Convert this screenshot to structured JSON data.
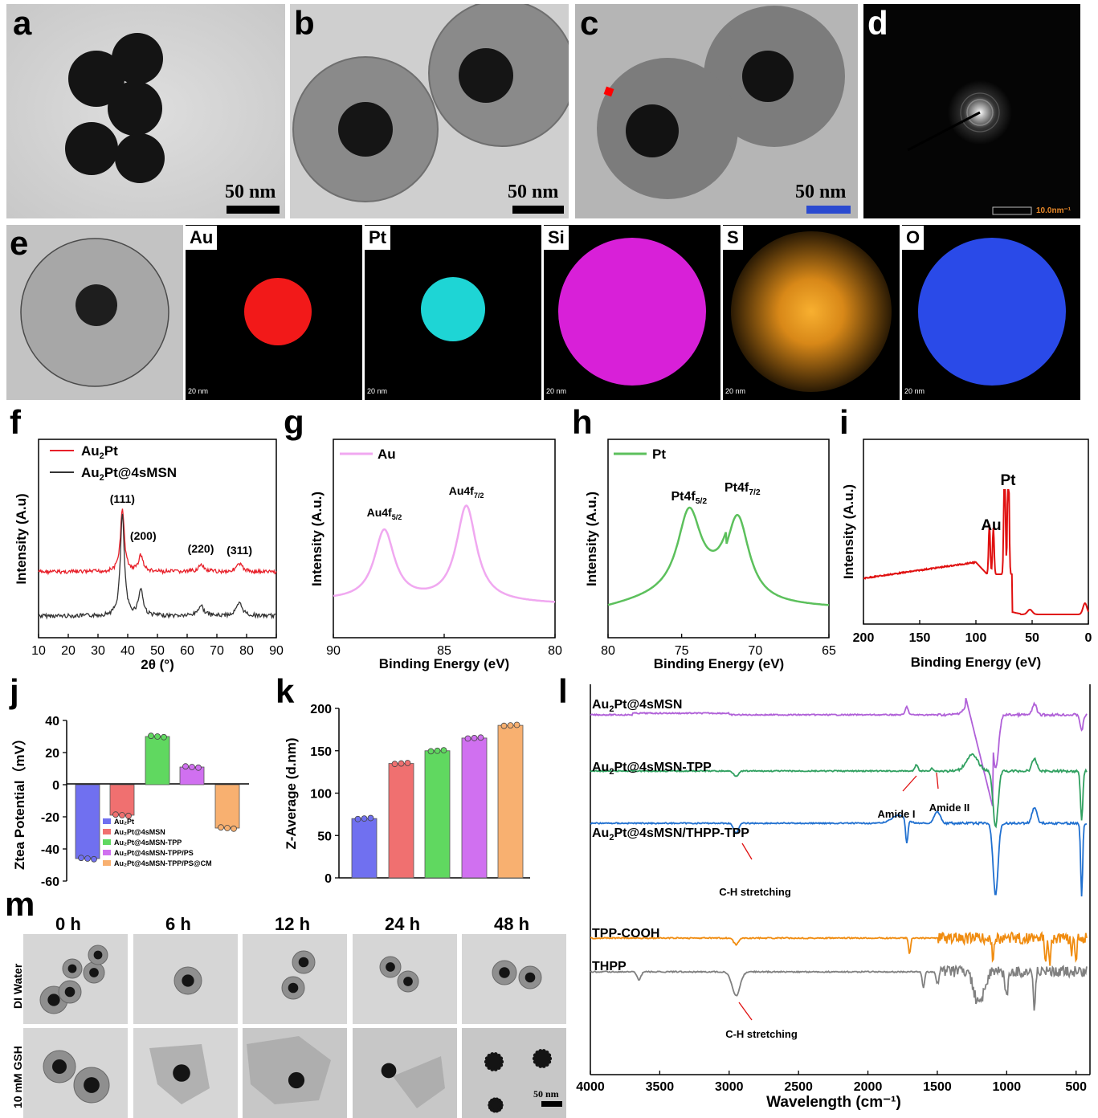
{
  "panels": {
    "a": {
      "letter": "a",
      "scale": "50 nm"
    },
    "b": {
      "letter": "b",
      "scale": "50 nm"
    },
    "c": {
      "letter": "c",
      "scale": "50 nm"
    },
    "d": {
      "letter": "d",
      "scale": "10.0nm⁻¹"
    },
    "e": {
      "letter": "e",
      "maps": [
        {
          "label": "Au",
          "scale": "20 nm",
          "color": "#ff1a1a"
        },
        {
          "label": "Pt",
          "scale": "20 nm",
          "color": "#20e0e0"
        },
        {
          "label": "Si",
          "scale": "20 nm",
          "color": "#e020e0"
        },
        {
          "label": "S",
          "scale": "20 nm",
          "color": "#f0a020"
        },
        {
          "label": "O",
          "scale": "20 nm",
          "color": "#2a4ae8"
        }
      ]
    },
    "f": {
      "letter": "f"
    },
    "g": {
      "letter": "g"
    },
    "h": {
      "letter": "h"
    },
    "i": {
      "letter": "i"
    },
    "j": {
      "letter": "j"
    },
    "k": {
      "letter": "k"
    },
    "l": {
      "letter": "l"
    },
    "m": {
      "letter": "m",
      "times": [
        "0 h",
        "6 h",
        "12 h",
        "24 h",
        "48 h"
      ],
      "rows": [
        "DI Water",
        "10 mM GSH"
      ],
      "scale": "50 nm"
    }
  },
  "chart_data": [
    {
      "panel": "f",
      "type": "line",
      "xlabel": "2θ (°)",
      "ylabel": "Intensity (A.u)",
      "xlim": [
        10,
        90
      ],
      "xticks": [
        10,
        20,
        30,
        40,
        50,
        60,
        70,
        80,
        90
      ],
      "series": [
        {
          "name": "Au₂Pt",
          "color": "#e8202a"
        },
        {
          "name": "Au₂Pt@4sMSN",
          "color": "#333333"
        }
      ],
      "peaks": [
        {
          "x": 38.2,
          "label": "(111)"
        },
        {
          "x": 44.4,
          "label": "(200)"
        },
        {
          "x": 64.6,
          "label": "(220)"
        },
        {
          "x": 77.6,
          "label": "(311)"
        }
      ]
    },
    {
      "panel": "g",
      "type": "line",
      "xlabel": "Binding Energy (eV)",
      "ylabel": "Intensity (A.u.)",
      "xlim": [
        90,
        80
      ],
      "xticks": [
        90,
        85,
        80
      ],
      "series": [
        {
          "name": "Au",
          "color": "#f0a8f0"
        }
      ],
      "peaks": [
        {
          "x": 87.7,
          "label": "Au4f",
          "sub": "5/2"
        },
        {
          "x": 84.0,
          "label": "Au4f",
          "sub": "7/2"
        }
      ]
    },
    {
      "panel": "h",
      "type": "line",
      "xlabel": "Binding Energy (eV)",
      "ylabel": "Intensity (A.u.)",
      "xlim": [
        80,
        65
      ],
      "xticks": [
        80,
        75,
        70,
        65
      ],
      "series": [
        {
          "name": "Pt",
          "color": "#5cc05c"
        }
      ],
      "peaks": [
        {
          "x": 74.5,
          "label": "Pt4f",
          "sub": "5/2"
        },
        {
          "x": 71.2,
          "label": "Pt4f",
          "sub": "7/2"
        }
      ]
    },
    {
      "panel": "i",
      "type": "line",
      "xlabel": "Binding Energy (eV)",
      "ylabel": "Intensity (A.u.)",
      "xlim": [
        200,
        0
      ],
      "xticks": [
        200,
        150,
        100,
        50,
        0
      ],
      "series": [
        {
          "name": "",
          "color": "#e01010"
        }
      ],
      "annotations": [
        {
          "x": 87,
          "label": "Au"
        },
        {
          "x": 72,
          "label": "Pt"
        }
      ]
    },
    {
      "panel": "j",
      "type": "bar",
      "ylabel": "Ztea Potential（mV）",
      "ylim": [
        -60,
        40
      ],
      "yticks": [
        40,
        20,
        0,
        -20,
        -40,
        -60
      ],
      "categories": [
        "Au₂Pt",
        "Au₂Pt@4sMSN",
        "Au₂Pt@4sMSN-TPP",
        "Au₂Pt@4sMSN-TPP/PS",
        "Au₂Pt@4sMSN-TPP/PS@CM"
      ],
      "values": [
        -46,
        -19,
        30,
        11,
        -27
      ],
      "colors": [
        "#7070f0",
        "#f07070",
        "#60d860",
        "#d070f0",
        "#f8b070"
      ]
    },
    {
      "panel": "k",
      "type": "bar",
      "ylabel": "Z-Average (d.nm)",
      "ylim": [
        0,
        200
      ],
      "yticks": [
        0,
        50,
        100,
        150,
        200
      ],
      "values": [
        70,
        135,
        150,
        165,
        180
      ],
      "colors": [
        "#7070f0",
        "#f07070",
        "#60d860",
        "#d070f0",
        "#f8b070"
      ]
    },
    {
      "panel": "l",
      "type": "line",
      "xlabel": "Wavelength (cm⁻¹)",
      "xlim": [
        4000,
        400
      ],
      "xticks": [
        4000,
        3500,
        3000,
        2500,
        2000,
        1500,
        1000,
        500
      ],
      "series": [
        {
          "name": "Au₂Pt@4sMSN",
          "color": "#b060d8"
        },
        {
          "name": "Au₂Pt@4sMSN-TPP",
          "color": "#30a060"
        },
        {
          "name": "Au₂Pt@4sMSN/THPP-TPP",
          "color": "#2070d0"
        },
        {
          "name": "TPP-COOH",
          "color": "#f08c10"
        },
        {
          "name": "THPP",
          "color": "#808080"
        }
      ],
      "annotations": [
        "Amide I",
        "Amide II",
        "C-H stretching",
        "C-H stretching"
      ]
    }
  ]
}
